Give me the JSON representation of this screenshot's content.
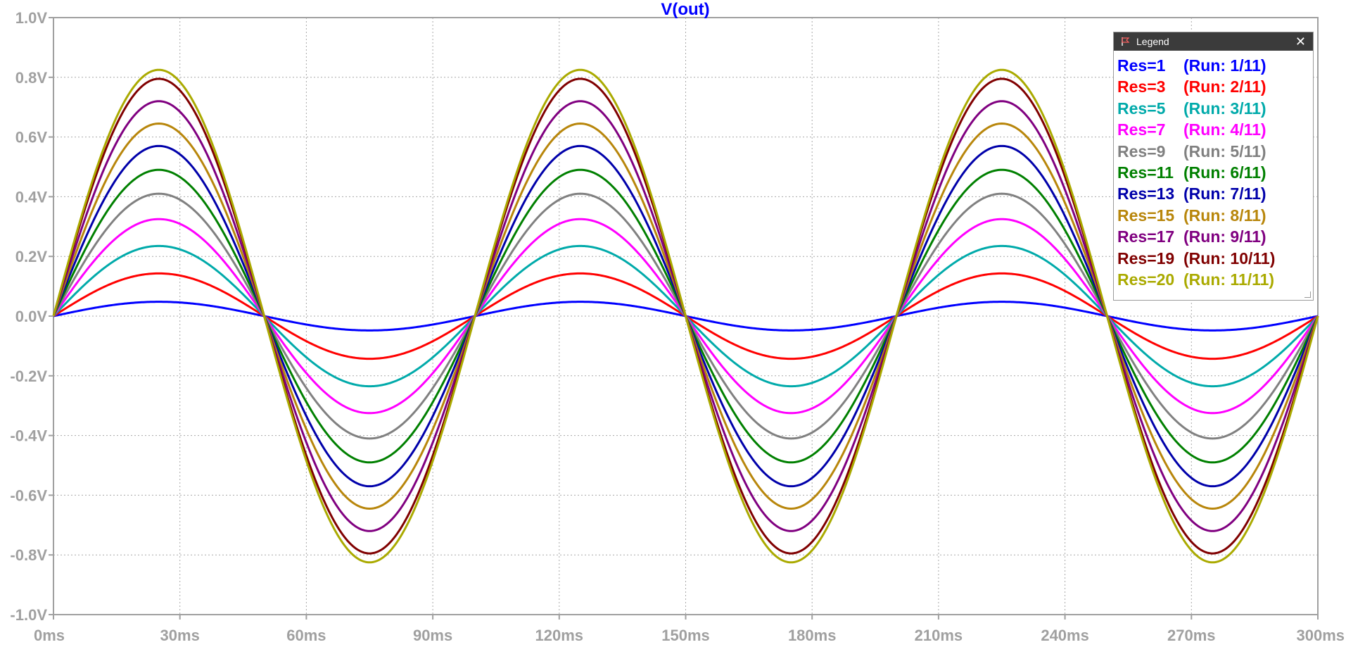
{
  "chart_data": {
    "type": "line",
    "title": "V(out)",
    "xlabel": "",
    "ylabel": "",
    "x_unit": "ms",
    "y_unit": "V",
    "xlim": [
      0,
      300
    ],
    "ylim": [
      -1.0,
      1.0
    ],
    "x_ticks": [
      "0ms",
      "30ms",
      "60ms",
      "90ms",
      "120ms",
      "150ms",
      "180ms",
      "210ms",
      "240ms",
      "270ms",
      "300ms"
    ],
    "y_ticks": [
      "1.0V",
      "0.8V",
      "0.6V",
      "0.4V",
      "0.2V",
      "0.0V",
      "-0.2V",
      "-0.4V",
      "-0.6V",
      "-0.8V",
      "-1.0V"
    ],
    "grid": true,
    "waveform": "sine",
    "frequency_hz": 10,
    "series": [
      {
        "name": "Res=1",
        "run": "(Run: 1/11)",
        "color": "#0000ff",
        "amplitude": 0.048
      },
      {
        "name": "Res=3",
        "run": "(Run: 2/11)",
        "color": "#ff0000",
        "amplitude": 0.143
      },
      {
        "name": "Res=5",
        "run": "(Run: 3/11)",
        "color": "#00aaaa",
        "amplitude": 0.235
      },
      {
        "name": "Res=7",
        "run": "(Run: 4/11)",
        "color": "#ff00ff",
        "amplitude": 0.325
      },
      {
        "name": "Res=9",
        "run": "(Run: 5/11)",
        "color": "#808080",
        "amplitude": 0.41
      },
      {
        "name": "Res=11",
        "run": "(Run: 6/11)",
        "color": "#008000",
        "amplitude": 0.49
      },
      {
        "name": "Res=13",
        "run": "(Run: 7/11)",
        "color": "#0000aa",
        "amplitude": 0.57
      },
      {
        "name": "Res=15",
        "run": "(Run: 8/11)",
        "color": "#b8860b",
        "amplitude": 0.645
      },
      {
        "name": "Res=17",
        "run": "(Run: 9/11)",
        "color": "#800080",
        "amplitude": 0.72
      },
      {
        "name": "Res=19",
        "run": "(Run: 10/11)",
        "color": "#800000",
        "amplitude": 0.795
      },
      {
        "name": "Res=20",
        "run": "(Run: 11/11)",
        "color": "#aaaa00",
        "amplitude": 0.825
      }
    ]
  },
  "legend": {
    "title": "Legend",
    "close_glyph": "✕",
    "placement": "top-right"
  }
}
